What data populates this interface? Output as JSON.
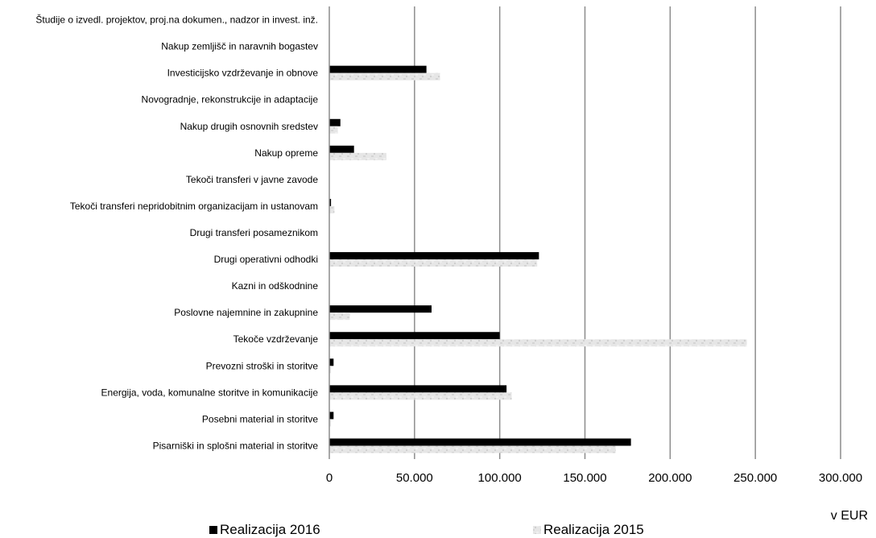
{
  "chart_data": {
    "type": "bar",
    "orientation": "horizontal",
    "categories": [
      "Študije o izvedl. projektov, proj.na dokumen., nadzor in invest. inž.",
      "Nakup zemljišč in naravnih bogastev",
      "Investicijsko vzdrževanje in obnove",
      "Novogradnje, rekonstrukcije in adaptacije",
      "Nakup drugih osnovnih sredstev",
      "Nakup opreme",
      "Tekoči transferi v javne zavode",
      "Tekoči transferi nepridobitnim organizacijam in ustanovam",
      "Drugi transferi posameznikom",
      "Drugi operativni odhodki",
      "Kazni in odškodnine",
      "Poslovne najemnine in zakupnine",
      "Tekoče vzdrževanje",
      "Prevozni stroški in storitve",
      "Energija, voda, komunalne storitve in komunikacije",
      "Posebni material in storitve",
      "Pisarniški in splošni material in storitve"
    ],
    "series": [
      {
        "name": "Realizacija 2016",
        "color": "#000000",
        "values": [
          0,
          0,
          57000,
          0,
          6500,
          14500,
          0,
          1000,
          0,
          123000,
          0,
          60000,
          100000,
          2500,
          104000,
          2500,
          177000
        ]
      },
      {
        "name": "Realizacija 2015",
        "color": "#dcdcdc",
        "values": [
          0,
          0,
          65000,
          0,
          5000,
          33500,
          0,
          3000,
          0,
          122000,
          0,
          12000,
          245000,
          1000,
          107000,
          1000,
          168000
        ]
      }
    ],
    "xlim": [
      0,
      300000
    ],
    "xticks": [
      0,
      50000,
      100000,
      150000,
      200000,
      250000,
      300000
    ],
    "xtick_labels": [
      "0",
      "50.000",
      "100.000",
      "150.000",
      "200.000",
      "250.000",
      "300.000"
    ],
    "unit_label": "v EUR",
    "grid": true,
    "legend_position": "bottom"
  }
}
